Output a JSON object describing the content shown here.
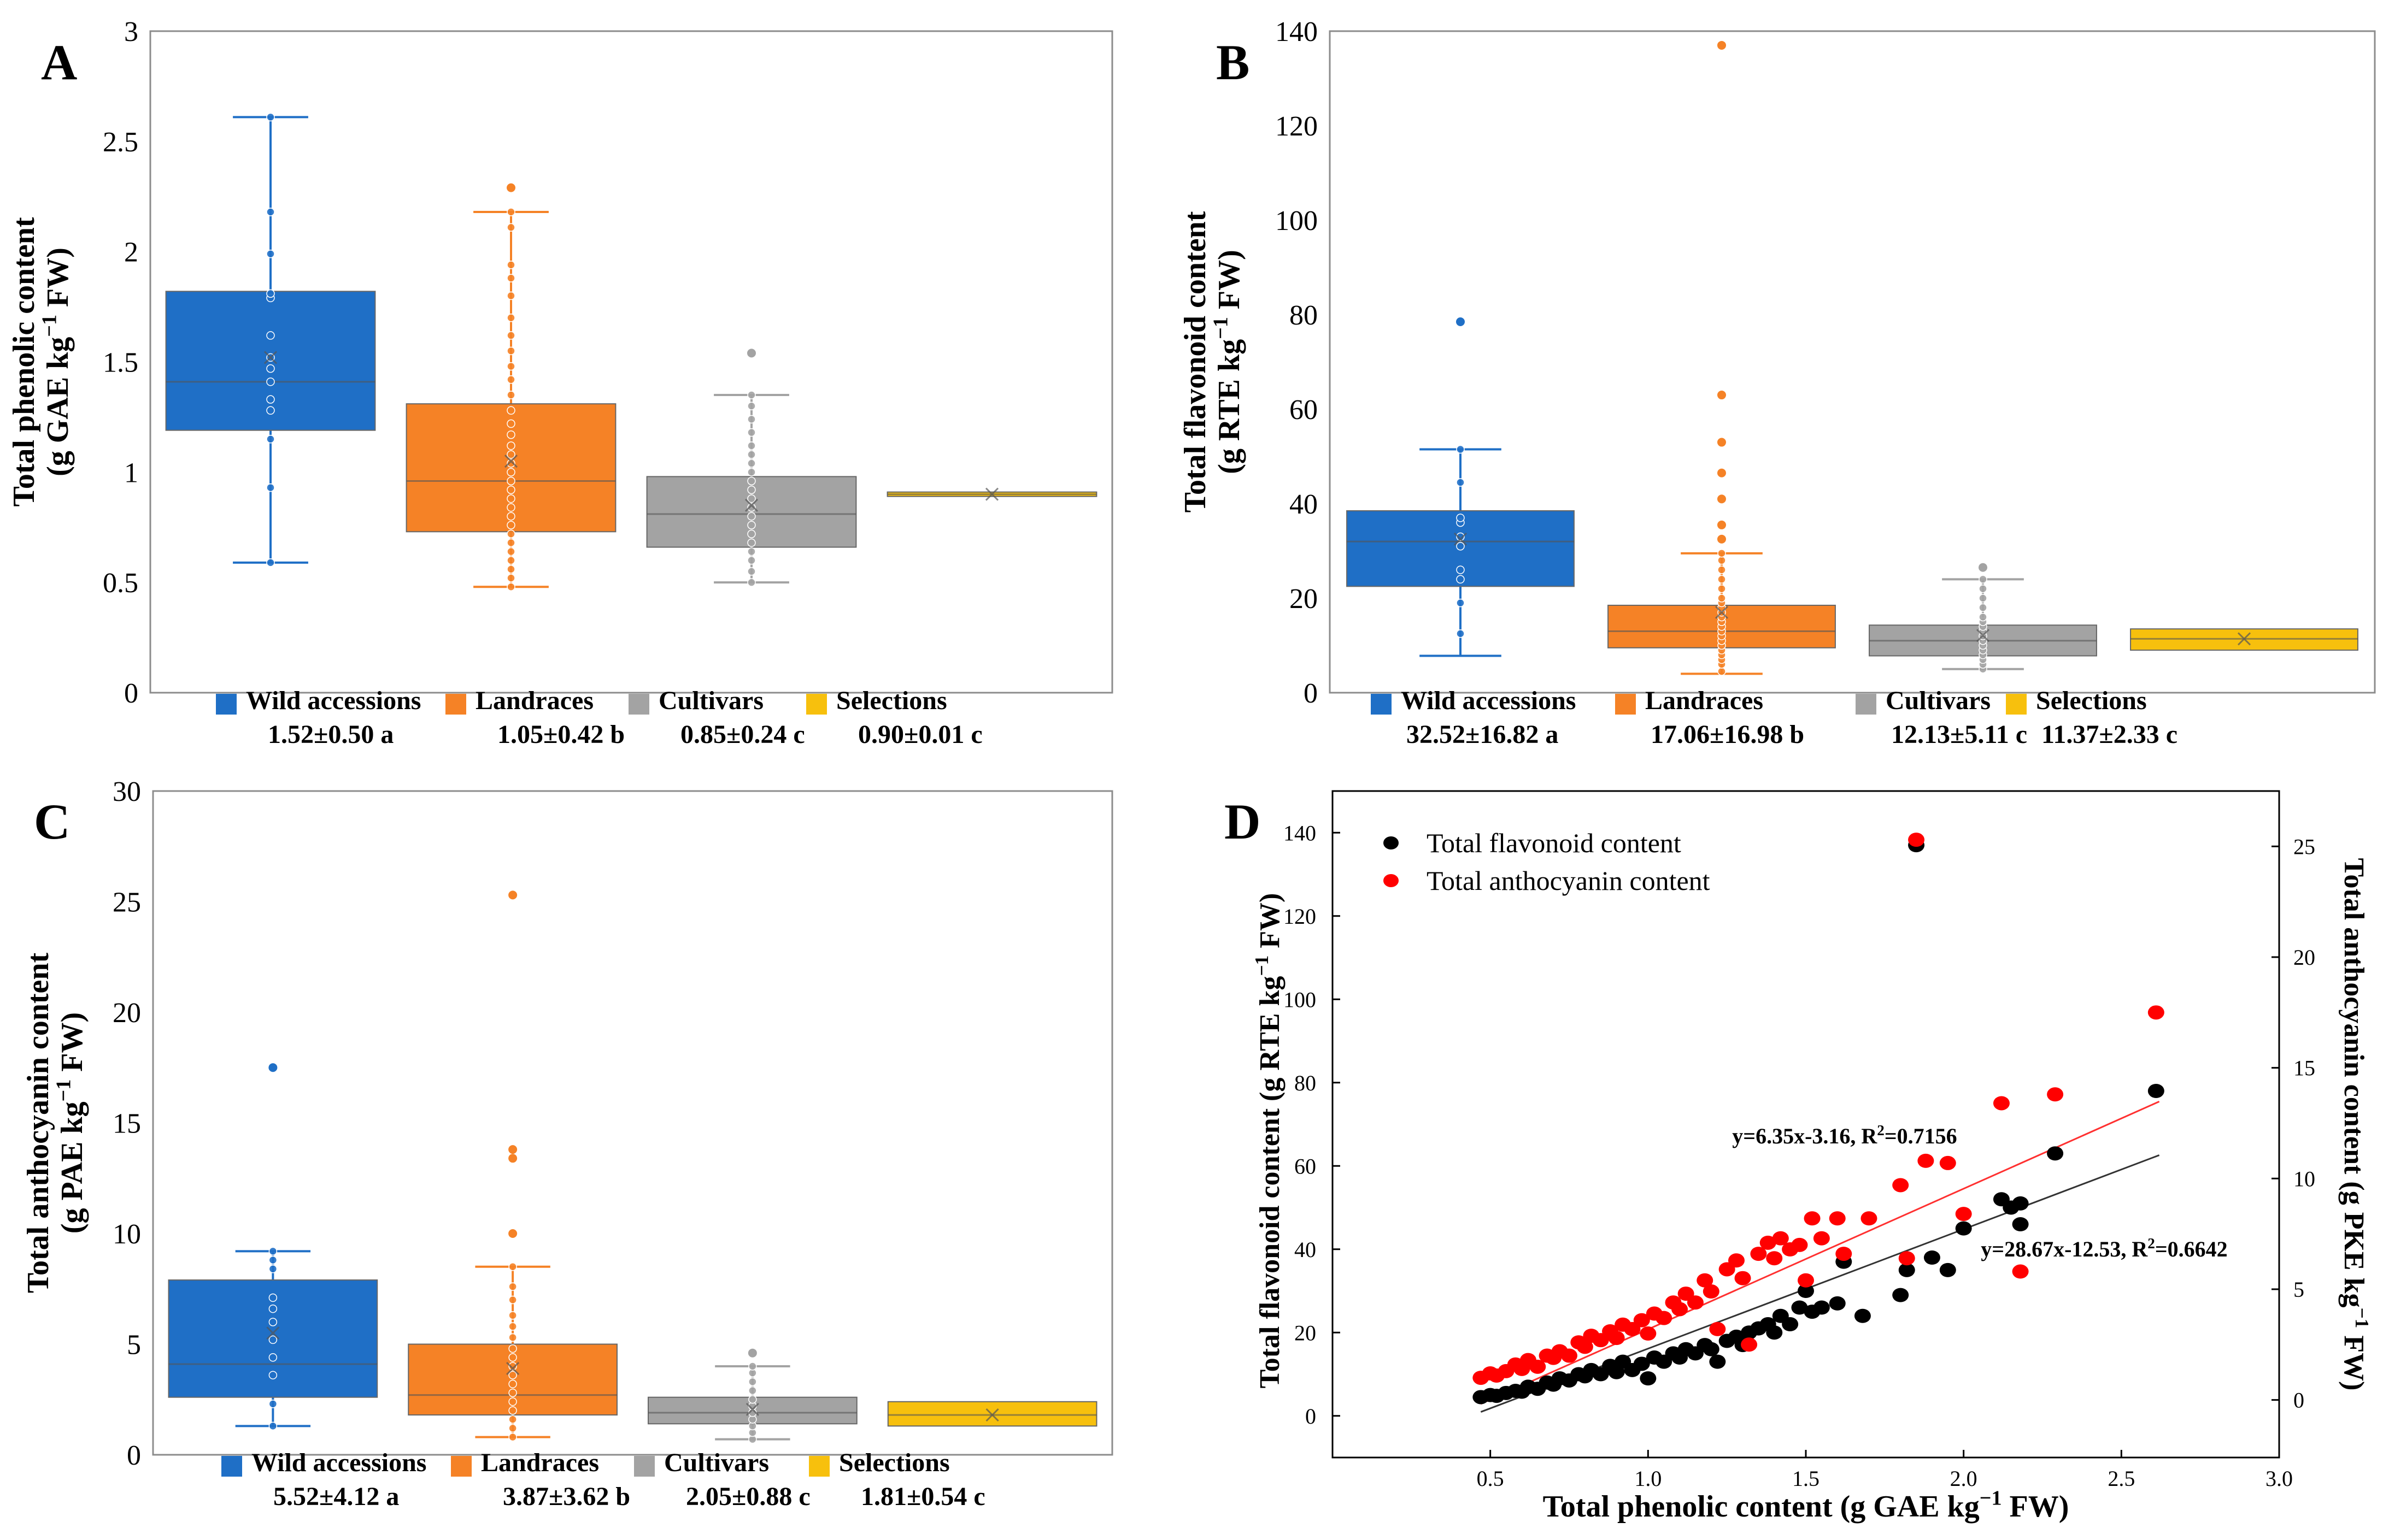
{
  "colors": {
    "wild": "#1f6fc6",
    "land": "#f58226",
    "cult": "#a3a3a3",
    "sel": "#f7c00d",
    "black": "#000000",
    "red": "#ff0000"
  },
  "chart_data": [
    {
      "panel": "A",
      "type": "box",
      "ylabel_line1": "Total phenolic content",
      "ylabel_line2_pre": "(g GAE kg",
      "ylabel_sup": "−1",
      "ylabel_line2_post": " FW)",
      "ylim": [
        0,
        3
      ],
      "yticks": [
        0,
        0.5,
        1,
        1.5,
        2,
        2.5,
        3
      ],
      "ytick_labels": [
        "0",
        "0.5",
        "1",
        "1.5",
        "2",
        "2.5",
        "3"
      ],
      "series": [
        {
          "name": "Wild accessions",
          "stat": "1.52±0.50 a",
          "color_key": "wild",
          "q1": 1.19,
          "median": 1.41,
          "q3": 1.82,
          "mean": 1.52,
          "wlo": 0.59,
          "whi": 2.61,
          "points": [
            0.59,
            0.93,
            1.15,
            1.28,
            1.33,
            1.41,
            1.47,
            1.52,
            1.62,
            1.79,
            1.81,
            1.99,
            2.18,
            2.61
          ],
          "outliers": []
        },
        {
          "name": "Landraces",
          "stat": "1.05±0.42 b",
          "color_key": "land",
          "q1": 0.73,
          "median": 0.96,
          "q3": 1.31,
          "mean": 1.05,
          "wlo": 0.48,
          "whi": 2.18,
          "points": [
            0.48,
            0.52,
            0.56,
            0.6,
            0.64,
            0.68,
            0.72,
            0.76,
            0.8,
            0.84,
            0.88,
            0.92,
            0.96,
            1.0,
            1.04,
            1.08,
            1.12,
            1.17,
            1.22,
            1.28,
            1.35,
            1.42,
            1.48,
            1.55,
            1.62,
            1.7,
            1.8,
            1.88,
            1.94,
            2.11,
            2.18
          ],
          "outliers": [
            2.29
          ]
        },
        {
          "name": "Cultivars",
          "stat": "0.85±0.24 c",
          "color_key": "cult",
          "q1": 0.66,
          "median": 0.81,
          "q3": 0.98,
          "mean": 0.85,
          "wlo": 0.5,
          "whi": 1.35,
          "points": [
            0.5,
            0.55,
            0.6,
            0.64,
            0.68,
            0.72,
            0.76,
            0.8,
            0.84,
            0.88,
            0.92,
            0.96,
            1.0,
            1.04,
            1.08,
            1.12,
            1.18,
            1.24,
            1.3,
            1.35
          ],
          "outliers": [
            1.54
          ]
        },
        {
          "name": "Selections",
          "stat": "0.90±0.01 c",
          "color_key": "sel",
          "q1": 0.89,
          "median": 0.9,
          "q3": 0.91,
          "mean": 0.9,
          "wlo": null,
          "whi": null,
          "points": [],
          "outliers": []
        }
      ]
    },
    {
      "panel": "B",
      "type": "box",
      "ylabel_line1": "Total flavonoid content",
      "ylabel_line2_pre": "(g RTE kg",
      "ylabel_sup": "−1",
      "ylabel_line2_post": " FW)",
      "ylim": [
        0,
        140
      ],
      "yticks": [
        0,
        20,
        40,
        60,
        80,
        100,
        120,
        140
      ],
      "ytick_labels": [
        "0",
        "20",
        "40",
        "60",
        "80",
        "100",
        "120",
        "140"
      ],
      "series": [
        {
          "name": "Wild accessions",
          "stat": "32.52±16.82 a",
          "color_key": "wild",
          "q1": 22.5,
          "median": 32,
          "q3": 38.5,
          "mean": 32.5,
          "wlo": 7.8,
          "whi": 51.5,
          "points": [
            12.5,
            19,
            24,
            26,
            31,
            33,
            36,
            37,
            44.5,
            51.5
          ],
          "outliers": [
            78.5
          ]
        },
        {
          "name": "Landraces",
          "stat": "17.06±16.98 b",
          "color_key": "land",
          "q1": 9.5,
          "median": 13,
          "q3": 18.5,
          "mean": 17,
          "wlo": 4,
          "whi": 29.5,
          "points": [
            4.5,
            6,
            7,
            8,
            9,
            10,
            11,
            12,
            13,
            14,
            15,
            16,
            17,
            18,
            19,
            20,
            22,
            24,
            26,
            28,
            29.5
          ],
          "outliers": [
            32.5,
            35.5,
            41,
            46.5,
            53,
            63,
            137
          ]
        },
        {
          "name": "Cultivars",
          "stat": "12.13±5.11 c",
          "color_key": "cult",
          "q1": 7.8,
          "median": 11,
          "q3": 14.3,
          "mean": 12.1,
          "wlo": 5,
          "whi": 24,
          "points": [
            5,
            6,
            7,
            8,
            9,
            10,
            11,
            12,
            13,
            14,
            15,
            16,
            18,
            20,
            22,
            24
          ],
          "outliers": [
            26.5
          ]
        },
        {
          "name": "Selections",
          "stat": "11.37±2.33 c",
          "color_key": "sel",
          "q1": 9,
          "median": 11.4,
          "q3": 13.5,
          "mean": 11.4,
          "wlo": null,
          "whi": null,
          "points": [],
          "outliers": []
        }
      ]
    },
    {
      "panel": "C",
      "type": "box",
      "ylabel_line1": "Total anthocyanin content",
      "ylabel_line2_pre": "(g PAE kg",
      "ylabel_sup": "−1",
      "ylabel_line2_post": " FW)",
      "ylim": [
        0,
        30
      ],
      "yticks": [
        0,
        5,
        10,
        15,
        20,
        25,
        30
      ],
      "ytick_labels": [
        "0",
        "5",
        "10",
        "15",
        "20",
        "25",
        "30"
      ],
      "series": [
        {
          "name": "Wild accessions",
          "stat": "5.52±4.12 a",
          "color_key": "wild",
          "q1": 2.6,
          "median": 4.1,
          "q3": 7.9,
          "mean": 5.5,
          "wlo": 1.3,
          "whi": 9.2,
          "points": [
            1.3,
            2.3,
            3.6,
            4.4,
            5.2,
            6.0,
            6.6,
            7.1,
            8.4,
            8.8,
            9.2
          ],
          "outliers": [
            17.5
          ]
        },
        {
          "name": "Landraces",
          "stat": "3.87±3.62 b",
          "color_key": "land",
          "q1": 1.8,
          "median": 2.7,
          "q3": 5.0,
          "mean": 3.9,
          "wlo": 0.8,
          "whi": 8.5,
          "points": [
            0.8,
            1.2,
            1.6,
            2.0,
            2.4,
            2.8,
            3.2,
            3.6,
            4.0,
            4.4,
            4.8,
            5.3,
            5.8,
            6.3,
            7.0,
            7.6,
            8.5
          ],
          "outliers": [
            10,
            13.4,
            13.8,
            25.3
          ]
        },
        {
          "name": "Cultivars",
          "stat": "2.05±0.88 c",
          "color_key": "cult",
          "q1": 1.4,
          "median": 1.9,
          "q3": 2.6,
          "mean": 2.05,
          "wlo": 0.7,
          "whi": 4.0,
          "points": [
            0.7,
            1.0,
            1.3,
            1.6,
            1.9,
            2.2,
            2.5,
            2.9,
            3.3,
            3.7,
            4.0
          ],
          "outliers": [
            4.6
          ]
        },
        {
          "name": "Selections",
          "stat": "1.81±0.54 c",
          "color_key": "sel",
          "q1": 1.3,
          "median": 1.8,
          "q3": 2.4,
          "mean": 1.8,
          "wlo": null,
          "whi": null,
          "points": [],
          "outliers": []
        }
      ]
    },
    {
      "panel": "D",
      "type": "scatter",
      "xlabel_pre": "Total phenolic content (g GAE kg",
      "xlabel_sup": "−1",
      "xlabel_post": " FW)",
      "ylabel_left_pre": "Total flavonoid content (g RTE kg",
      "ylabel_left_sup": "−1",
      "ylabel_left_post": " FW)",
      "ylabel_right_pre": "Total anthocyanin content (g PKE kg",
      "ylabel_right_sup": "−1",
      "ylabel_right_post": " FW)",
      "xlim": [
        0,
        3
      ],
      "ylim_left": [
        -10,
        150
      ],
      "ylim_right": [
        -2.6,
        27.5
      ],
      "xticks": [
        0.5,
        1.0,
        1.5,
        2.0,
        2.5,
        3.0
      ],
      "xtick_labels": [
        "0.5",
        "1.0",
        "1.5",
        "2.0",
        "2.5",
        "3.0"
      ],
      "yticks_left": [
        0,
        20,
        40,
        60,
        80,
        100,
        120,
        140
      ],
      "ytick_left_labels": [
        "0",
        "20",
        "40",
        "60",
        "80",
        "100",
        "120",
        "140"
      ],
      "yticks_right": [
        0,
        5,
        10,
        15,
        20,
        25
      ],
      "ytick_right_labels": [
        "0",
        "5",
        "10",
        "15",
        "20",
        "25"
      ],
      "legend": [
        "Total flavonoid content",
        "Total anthocyanin content"
      ],
      "eq_red_pre": "y=6.35x-3.16, R",
      "eq_red_sup": "2",
      "eq_red_post": "=0.7156",
      "eq_black_pre": "y=28.67x-12.53, R",
      "eq_black_sup": "2",
      "eq_black_post": "=0.6642",
      "fit_black": {
        "slope": 28.67,
        "intercept": -12.53,
        "x": [
          0.47,
          2.62
        ]
      },
      "fit_red": {
        "slope": 6.35,
        "intercept": -3.16,
        "x": [
          0.47,
          2.62
        ]
      },
      "flavonoid": [
        [
          0.47,
          4.5
        ],
        [
          0.5,
          5
        ],
        [
          0.52,
          4.8
        ],
        [
          0.55,
          5.5
        ],
        [
          0.58,
          6
        ],
        [
          0.6,
          5.8
        ],
        [
          0.62,
          7
        ],
        [
          0.65,
          6.5
        ],
        [
          0.68,
          8
        ],
        [
          0.7,
          7.5
        ],
        [
          0.72,
          9
        ],
        [
          0.75,
          8.5
        ],
        [
          0.78,
          10
        ],
        [
          0.8,
          9.5
        ],
        [
          0.82,
          11
        ],
        [
          0.85,
          10
        ],
        [
          0.88,
          12
        ],
        [
          0.9,
          10.5
        ],
        [
          0.92,
          13
        ],
        [
          0.95,
          11
        ],
        [
          0.98,
          12.5
        ],
        [
          1.0,
          9
        ],
        [
          1.02,
          14
        ],
        [
          1.05,
          13
        ],
        [
          1.08,
          15
        ],
        [
          1.1,
          14
        ],
        [
          1.12,
          16
        ],
        [
          1.15,
          15
        ],
        [
          1.18,
          17
        ],
        [
          1.2,
          16
        ],
        [
          1.22,
          13
        ],
        [
          1.25,
          18
        ],
        [
          1.28,
          19
        ],
        [
          1.3,
          17
        ],
        [
          1.32,
          20
        ],
        [
          1.35,
          21
        ],
        [
          1.38,
          22
        ],
        [
          1.4,
          20
        ],
        [
          1.42,
          24
        ],
        [
          1.45,
          22
        ],
        [
          1.48,
          26
        ],
        [
          1.5,
          30
        ],
        [
          1.52,
          25
        ],
        [
          1.55,
          26
        ],
        [
          1.6,
          27
        ],
        [
          1.62,
          37
        ],
        [
          1.68,
          24
        ],
        [
          1.8,
          29
        ],
        [
          1.82,
          35
        ],
        [
          1.85,
          137
        ],
        [
          1.9,
          38
        ],
        [
          1.95,
          35
        ],
        [
          2.0,
          45
        ],
        [
          2.12,
          52
        ],
        [
          2.15,
          50
        ],
        [
          2.18,
          46
        ],
        [
          2.18,
          51
        ],
        [
          2.29,
          63
        ],
        [
          2.61,
          78
        ]
      ],
      "anthocyanin": [
        [
          0.47,
          1.0
        ],
        [
          0.5,
          1.2
        ],
        [
          0.52,
          1.1
        ],
        [
          0.55,
          1.3
        ],
        [
          0.58,
          1.6
        ],
        [
          0.6,
          1.4
        ],
        [
          0.62,
          1.8
        ],
        [
          0.65,
          1.5
        ],
        [
          0.68,
          2.0
        ],
        [
          0.7,
          1.9
        ],
        [
          0.72,
          2.2
        ],
        [
          0.75,
          2.0
        ],
        [
          0.78,
          2.6
        ],
        [
          0.8,
          2.4
        ],
        [
          0.82,
          2.9
        ],
        [
          0.85,
          2.7
        ],
        [
          0.88,
          3.1
        ],
        [
          0.9,
          2.8
        ],
        [
          0.92,
          3.4
        ],
        [
          0.95,
          3.2
        ],
        [
          0.98,
          3.6
        ],
        [
          1.0,
          3.0
        ],
        [
          1.02,
          3.9
        ],
        [
          1.05,
          3.7
        ],
        [
          1.08,
          4.4
        ],
        [
          1.1,
          4.1
        ],
        [
          1.12,
          4.8
        ],
        [
          1.15,
          4.4
        ],
        [
          1.18,
          5.4
        ],
        [
          1.2,
          4.9
        ],
        [
          1.22,
          3.2
        ],
        [
          1.25,
          5.9
        ],
        [
          1.28,
          6.3
        ],
        [
          1.3,
          5.5
        ],
        [
          1.32,
          2.5
        ],
        [
          1.35,
          6.6
        ],
        [
          1.38,
          7.1
        ],
        [
          1.4,
          6.4
        ],
        [
          1.42,
          7.3
        ],
        [
          1.45,
          6.8
        ],
        [
          1.48,
          7.0
        ],
        [
          1.5,
          5.4
        ],
        [
          1.52,
          8.2
        ],
        [
          1.55,
          7.3
        ],
        [
          1.6,
          8.2
        ],
        [
          1.62,
          6.6
        ],
        [
          1.7,
          8.2
        ],
        [
          1.8,
          9.7
        ],
        [
          1.82,
          6.4
        ],
        [
          1.85,
          25.3
        ],
        [
          1.88,
          10.8
        ],
        [
          1.95,
          10.7
        ],
        [
          2.0,
          8.4
        ],
        [
          2.12,
          13.4
        ],
        [
          2.18,
          5.8
        ],
        [
          2.29,
          13.8
        ],
        [
          2.61,
          17.5
        ]
      ]
    }
  ]
}
